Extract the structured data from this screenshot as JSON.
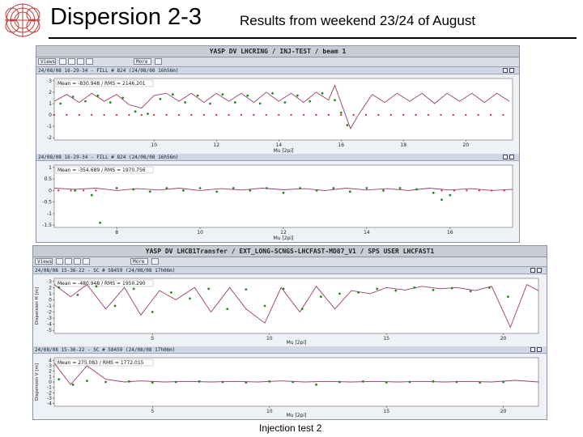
{
  "slide": {
    "title": "Dispersion 2-3",
    "subtitle": "Results from weekend 23/24 of August",
    "footer": "Injection test 2"
  },
  "colors": {
    "measured": "#1f8a1f",
    "model": "#9e3a66",
    "reference": "#e02020",
    "plot_background": "#ffffff",
    "header_strip": "#cfd6e6"
  },
  "icons": {
    "logo": "cern-logo-icon",
    "toolbar": [
      "views-menu-icon",
      "print-icon",
      "zoom-icon",
      "grid-icon",
      "settings-icon",
      "more-menu-icon",
      "export-icon"
    ]
  },
  "panel_top": {
    "window_title": "YASP DV LHCRING / INJ-TEST / beam 1",
    "views_label": "Views",
    "more_label": "More",
    "charts": [
      {
        "header": "24/08/08 16-29-34 - FILL # 824 (24/08/08 16h56m)",
        "stats": "Mean = -830.948 / RMS = 2146.201",
        "ylabel": "",
        "xlabel": "Mu [2pi]",
        "x_ticks": [
          "10",
          "12",
          "14",
          "16",
          "18",
          "20"
        ],
        "y_ticks": [
          "3",
          "2",
          "1",
          "0",
          "-1",
          "-2"
        ]
      },
      {
        "header": "24/08/08 16-29-34 - FILL # 824 (24/08/08 16h56m)",
        "stats": "Mean = -354.689 / RMS = 1970.756",
        "ylabel": "",
        "xlabel": "Mu [2pi]",
        "x_ticks": [
          "8",
          "10",
          "12",
          "14",
          "16"
        ],
        "y_ticks": [
          "1",
          "0.5",
          "0",
          "-0.5",
          "-1",
          "-1.5"
        ]
      }
    ]
  },
  "panel_bottom": {
    "window_title": "YASP DV LHCB1Transfer / EXT_LONG-SCNGS-LHCFAST-MD87_V1 / SPS USER LHCFAST1",
    "views_label": "Views",
    "more_label": "More",
    "charts": [
      {
        "header": "24/08/08 15-36-22 - SC # 58459 (24/08/08 17h06m)",
        "stats": "Mean = -480.948 / RMS = 1950.290",
        "ylabel": "Dispersion H [m]",
        "xlabel": "Mu [2pi]",
        "x_ticks": [
          "5",
          "10",
          "15",
          "20"
        ],
        "y_ticks": [
          "3",
          "2",
          "1",
          "0",
          "-1",
          "-2",
          "-3",
          "-4",
          "-5"
        ]
      },
      {
        "header": "24/08/08 15-36-22 - SC # 58459 (24/08/08 17h06m)",
        "stats": "Mean = 275.083 / RMS = 1772.015",
        "ylabel": "Dispersion V [m]",
        "xlabel": "Mu [2pi]",
        "x_ticks": [
          "5",
          "10",
          "15",
          "20"
        ],
        "y_ticks": [
          "4",
          "3",
          "2",
          "1",
          "0",
          "-1",
          "-2",
          "-3",
          "-4"
        ]
      }
    ]
  },
  "chart_data": [
    {
      "type": "line",
      "xlabel": "Mu [2pi]",
      "xlim": [
        6.8,
        21.5
      ],
      "ylim": [
        -2.2,
        3.2
      ],
      "series": [
        {
          "style": "model-line",
          "x": [
            6.8,
            7.2,
            7.6,
            8.0,
            8.4,
            8.8,
            9.2,
            9.6,
            10.0,
            10.4,
            10.8,
            11.2,
            11.6,
            12.0,
            12.4,
            12.8,
            13.2,
            13.6,
            14.0,
            14.4,
            14.8,
            15.2,
            15.6,
            15.8,
            16.1,
            16.3,
            16.6,
            17.0,
            17.4,
            17.8,
            18.2,
            18.6,
            19.0,
            19.4,
            19.8,
            20.2,
            20.6,
            21.0,
            21.4
          ],
          "values": [
            1.2,
            1.8,
            1.1,
            1.9,
            1.2,
            1.8,
            0.9,
            0.6,
            1.7,
            1.9,
            1.2,
            1.9,
            1.1,
            1.9,
            1.2,
            1.9,
            1.1,
            2.0,
            1.2,
            1.9,
            1.1,
            2.0,
            1.3,
            2.6,
            0.3,
            -1.2,
            0.2,
            1.8,
            1.1,
            1.9,
            1.2,
            1.9,
            1.0,
            1.9,
            1.2,
            1.9,
            1.1,
            1.9,
            1.2
          ]
        },
        {
          "style": "measured-points",
          "x": [
            7.0,
            7.4,
            7.8,
            8.2,
            8.6,
            9.0,
            9.4,
            9.8,
            10.2,
            10.6,
            11.0,
            11.4,
            11.8,
            12.2,
            12.6,
            13.0,
            13.4,
            13.8,
            14.2,
            14.6,
            15.0,
            15.4,
            15.8,
            16.0,
            16.2
          ],
          "values": [
            1.0,
            1.6,
            1.2,
            1.7,
            1.1,
            1.5,
            0.3,
            0.1,
            1.4,
            1.8,
            1.1,
            1.7,
            1.0,
            1.8,
            1.1,
            1.7,
            1.0,
            1.9,
            1.1,
            1.7,
            1.2,
            1.9,
            1.3,
            0.2,
            -0.9
          ]
        },
        {
          "style": "reference-points",
          "x": [
            6.8,
            7.2,
            7.6,
            8.0,
            8.4,
            8.8,
            9.2,
            9.6,
            10.0,
            10.4,
            10.8,
            11.2,
            11.6,
            12.0,
            12.4,
            12.8,
            13.2,
            13.6,
            14.0,
            14.4,
            14.8,
            15.2,
            15.6,
            16.0,
            16.4,
            16.8,
            17.2,
            17.6,
            18.0,
            18.4,
            18.8,
            19.2,
            19.6,
            20.0,
            20.4,
            20.8,
            21.2
          ],
          "values": [
            0,
            0,
            0,
            0,
            0,
            0,
            0,
            0,
            0,
            0,
            0,
            0,
            0,
            0,
            0,
            0,
            0,
            0,
            0,
            0,
            0,
            0,
            0,
            0,
            0,
            0,
            0,
            0,
            0,
            0,
            0,
            0,
            0,
            0,
            0,
            0,
            0
          ]
        }
      ]
    },
    {
      "type": "line",
      "xlabel": "Mu [2pi]",
      "xlim": [
        6.5,
        17.5
      ],
      "ylim": [
        -1.6,
        1.1
      ],
      "series": [
        {
          "style": "model-line",
          "x": [
            6.5,
            7.0,
            7.5,
            8.0,
            8.5,
            9.0,
            9.5,
            10.0,
            10.5,
            11.0,
            11.5,
            12.0,
            12.5,
            13.0,
            13.5,
            14.0,
            14.5,
            15.0,
            15.5,
            16.0,
            16.5,
            17.0,
            17.5
          ],
          "values": [
            0.1,
            0.05,
            0.1,
            0.0,
            0.08,
            0.02,
            0.1,
            0.0,
            0.08,
            0.02,
            0.1,
            0.03,
            0.08,
            0.0,
            0.1,
            0.02,
            0.08,
            0.0,
            0.1,
            0.02,
            0.08,
            0.0,
            0.05
          ]
        },
        {
          "style": "measured-points",
          "x": [
            7.0,
            7.4,
            7.6,
            8.0,
            8.4,
            8.8,
            9.2,
            9.6,
            10.0,
            10.4,
            10.8,
            11.2,
            11.6,
            12.0,
            12.4,
            12.8,
            13.2,
            13.6,
            14.0,
            14.4,
            14.8,
            15.2,
            15.6,
            15.8,
            16.0
          ],
          "values": [
            0.0,
            -0.2,
            -1.4,
            0.1,
            0.05,
            -0.05,
            0.1,
            0.0,
            0.1,
            -0.05,
            0.1,
            0.0,
            0.1,
            -0.1,
            0.1,
            0.0,
            0.1,
            -0.05,
            0.1,
            0.0,
            0.1,
            0.05,
            -0.1,
            -0.4,
            -0.2
          ]
        },
        {
          "style": "reference-points",
          "x": [
            6.6,
            6.9,
            7.2,
            7.5,
            15.8,
            16.1,
            16.4,
            16.7,
            17.0,
            17.3
          ],
          "values": [
            0,
            0,
            0,
            0,
            0,
            0,
            0,
            0,
            0,
            0
          ]
        }
      ]
    },
    {
      "type": "line",
      "ylabel": "Dispersion H [m]",
      "xlabel": "Mu [2pi]",
      "xlim": [
        0.8,
        21.5
      ],
      "ylim": [
        -5.5,
        3.5
      ],
      "series": [
        {
          "style": "model-line",
          "x": [
            0.8,
            1.5,
            2.2,
            3.0,
            3.8,
            4.5,
            5.3,
            6.0,
            6.8,
            7.5,
            8.3,
            9.0,
            9.8,
            10.5,
            11.3,
            12.0,
            12.8,
            13.5,
            14.3,
            15.0,
            15.8,
            16.5,
            17.3,
            18.0,
            18.8,
            19.5,
            20.3,
            21.0,
            21.5
          ],
          "values": [
            2.5,
            0.5,
            2.5,
            -1.5,
            2.0,
            -2.5,
            1.5,
            0.0,
            2.0,
            -2.0,
            2.0,
            -1.5,
            -3.8,
            2.0,
            -2.0,
            2.2,
            -1.5,
            1.5,
            1.0,
            2.0,
            1.6,
            2.2,
            1.8,
            2.0,
            1.5,
            2.2,
            -4.5,
            2.5,
            1.5
          ]
        },
        {
          "style": "measured-points",
          "x": [
            1.0,
            1.8,
            2.6,
            3.4,
            4.2,
            5.0,
            5.8,
            6.6,
            7.4,
            8.2,
            9.0,
            9.8,
            10.6,
            11.4,
            12.2,
            13.0,
            13.8,
            14.6,
            15.4,
            16.2,
            17.0,
            17.8,
            18.6,
            19.4,
            20.2
          ],
          "values": [
            2.0,
            0.8,
            2.2,
            -1.0,
            1.8,
            -2.0,
            1.2,
            0.2,
            1.8,
            -1.5,
            1.7,
            -1.0,
            1.8,
            -1.5,
            0.5,
            1.0,
            1.2,
            1.8,
            1.5,
            2.0,
            1.6,
            1.9,
            1.4,
            2.0,
            0.5
          ]
        }
      ]
    },
    {
      "type": "line",
      "ylabel": "Dispersion V [m]",
      "xlabel": "Mu [2pi]",
      "xlim": [
        0.8,
        21.5
      ],
      "ylim": [
        -4.5,
        4.5
      ],
      "series": [
        {
          "style": "model-line",
          "x": [
            0.8,
            1.5,
            2.2,
            3.0,
            3.8,
            4.5,
            5.5,
            6.5,
            7.5,
            8.5,
            9.5,
            10.5,
            11.5,
            12.5,
            13.5,
            14.5,
            15.5,
            16.5,
            17.5,
            18.5,
            19.5,
            20.5,
            21.5
          ],
          "values": [
            3.5,
            -0.5,
            3.0,
            0.5,
            0.0,
            0.2,
            0.0,
            0.1,
            0.0,
            0.1,
            0.0,
            0.2,
            0.0,
            0.1,
            0.0,
            0.1,
            0.0,
            0.1,
            0.0,
            0.1,
            0.0,
            0.3,
            0.0
          ]
        },
        {
          "style": "measured-points",
          "x": [
            1.0,
            1.6,
            2.2,
            3.0,
            4.0,
            5.0,
            6.0,
            7.0,
            8.0,
            9.0,
            10.0,
            11.0,
            12.0,
            13.0,
            14.0,
            15.0,
            16.0,
            17.0,
            18.0,
            19.0,
            20.0
          ],
          "values": [
            0.5,
            -0.5,
            0.2,
            0.0,
            0.1,
            -0.1,
            0.0,
            0.1,
            0.0,
            -0.1,
            0.1,
            0.0,
            -0.5,
            0.0,
            0.1,
            -0.1,
            0.0,
            0.1,
            0.0,
            -0.1,
            0.0
          ]
        }
      ]
    }
  ]
}
